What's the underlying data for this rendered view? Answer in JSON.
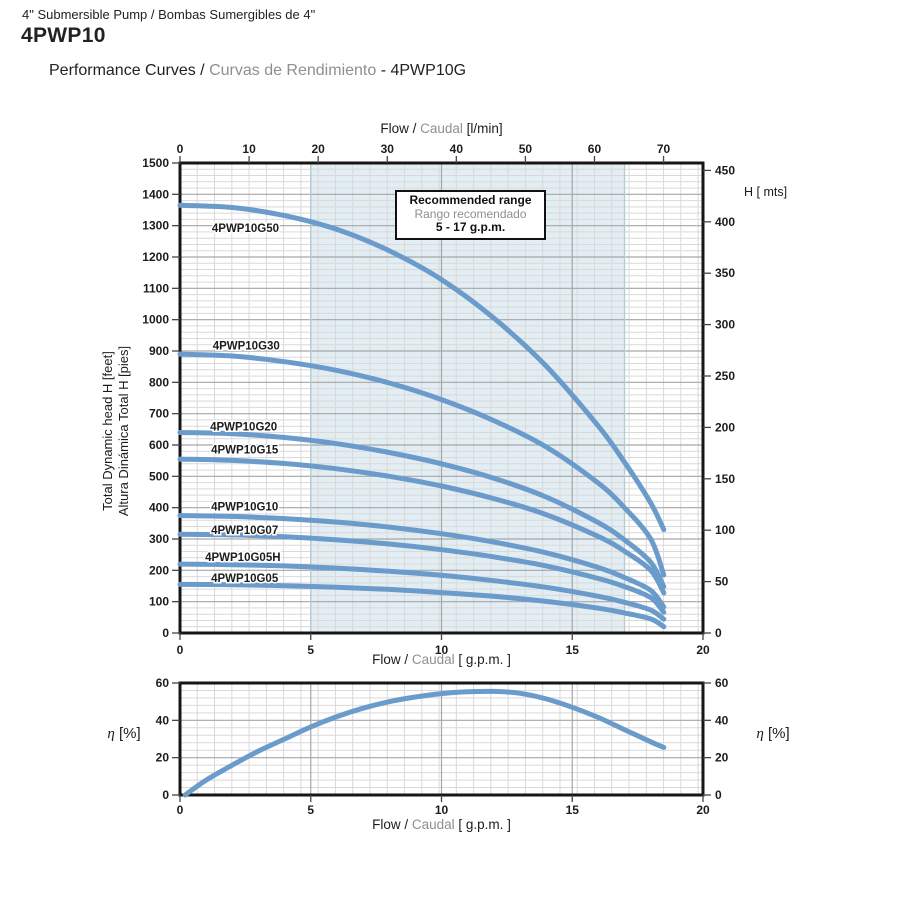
{
  "header": {
    "product_line": "4\" Submersible Pump / Bombas Sumergibles de 4\"",
    "model": "4PWP10",
    "subtitle_part1": "Performance Curves / ",
    "subtitle_part2": "Curvas de Rendimiento",
    "subtitle_part3": " - 4PWP10G"
  },
  "labels": {
    "top_axis_part1": "Flow / ",
    "top_axis_part2": "Caudal ",
    "top_axis_part3": "[l/min]",
    "bottom_axis_part1": "Flow / ",
    "bottom_axis_part2": "Caudal ",
    "bottom_axis_part3": "[ g.p.m. ]",
    "right_axis": "H [ mts]",
    "y_axis_line1": "Total Dynamic head H [feet]",
    "y_axis_line2": "Altura Dinámica Total H [pies]",
    "eta": "η",
    "eta_unit": " [%]",
    "recommended_line1": "Recommended range",
    "recommended_line2": "Rango recomendado",
    "recommended_line3": "5 - 17 g.p.m."
  },
  "colors": {
    "curve": "#6a9bcb",
    "shade": "#e2eef3",
    "shade_edge": "#b7ccd4",
    "grid_minor": "#d9d9d9",
    "grid_major": "#a6a6a6",
    "border": "#161616",
    "tick_text": "#1c1c1c",
    "gray_text": "#8f8f8f"
  },
  "chart_data": [
    {
      "type": "line",
      "title": "Head vs Flow performance curves",
      "xlabel": "Flow / Caudal [ g.p.m. ]",
      "xlabel_top": "Flow / Caudal [l/min]",
      "ylabel_left": "Total Dynamic head H [feet] / Altura Dinámica Total H [pies]",
      "ylabel_right": "H [ mts]",
      "x_range_gpm": [
        0,
        20
      ],
      "x_ticks_gpm": [
        0,
        5,
        10,
        15,
        20
      ],
      "x_ticks_lmin": [
        0,
        10,
        20,
        30,
        40,
        50,
        60,
        70
      ],
      "lmin_per_gpm": 3.7854,
      "y_range_feet": [
        0,
        1500
      ],
      "y_ticks_feet": [
        0,
        100,
        200,
        300,
        400,
        500,
        600,
        700,
        800,
        900,
        1000,
        1100,
        1200,
        1300,
        1400,
        1500
      ],
      "y_ticks_mts": [
        0,
        50,
        100,
        150,
        200,
        250,
        300,
        350,
        400,
        450
      ],
      "feet_per_meter": 3.28084,
      "grid": {
        "minor_x_lmin": 2.5,
        "major_x_gpm": 5,
        "minor_y_feet": 20,
        "major_y_feet": 100
      },
      "recommended_range_gpm": [
        5,
        17
      ],
      "x_gpm": [
        0,
        2,
        4,
        6,
        8,
        10,
        12,
        14,
        16,
        17,
        18,
        18.5
      ],
      "series": [
        {
          "name": "4PWP10G50",
          "y_feet": [
            1365,
            1358,
            1332,
            1288,
            1220,
            1128,
            1005,
            852,
            660,
            545,
            415,
            330
          ],
          "label_x_gpm": 1.22,
          "label_y_feet": 1292
        },
        {
          "name": "4PWP10G30",
          "y_feet": [
            890,
            884,
            866,
            838,
            798,
            745,
            678,
            594,
            478,
            400,
            300,
            185
          ],
          "label_x_gpm": 1.25,
          "label_y_feet": 918
        },
        {
          "name": "4PWP10G20",
          "y_feet": [
            640,
            636,
            624,
            604,
            576,
            540,
            494,
            434,
            352,
            297,
            226,
            148
          ],
          "label_x_gpm": 1.15,
          "label_y_feet": 659
        },
        {
          "name": "4PWP10G15",
          "y_feet": [
            555,
            551,
            541,
            524,
            500,
            469,
            429,
            378,
            308,
            261,
            200,
            128
          ],
          "label_x_gpm": 1.19,
          "label_y_feet": 585
        },
        {
          "name": "4PWP10G10",
          "y_feet": [
            375,
            372,
            365,
            354,
            338,
            317,
            290,
            256,
            209,
            177,
            136,
            83
          ],
          "label_x_gpm": 1.19,
          "label_y_feet": 403
        },
        {
          "name": "4PWP10G07",
          "y_feet": [
            315,
            313,
            307,
            297,
            284,
            266,
            243,
            214,
            174,
            148,
            113,
            66
          ],
          "label_x_gpm": 1.19,
          "label_y_feet": 329
        },
        {
          "name": "4PWP10G05H",
          "y_feet": [
            220,
            218,
            214,
            207,
            197,
            184,
            167,
            146,
            117,
            98,
            73,
            44
          ],
          "label_x_gpm": 0.96,
          "label_y_feet": 243
        },
        {
          "name": "4PWP10G05",
          "y_feet": [
            155,
            154,
            151,
            146,
            139,
            129,
            117,
            101,
            79,
            64,
            45,
            20
          ],
          "label_x_gpm": 1.19,
          "label_y_feet": 176
        }
      ]
    },
    {
      "type": "line",
      "title": "Efficiency vs Flow",
      "xlabel": "Flow / Caudal [ g.p.m. ]",
      "ylabel": "η [%]",
      "x_range_gpm": [
        0,
        20
      ],
      "x_ticks_gpm": [
        0,
        5,
        10,
        15,
        20
      ],
      "y_range_pct": [
        0,
        60
      ],
      "y_ticks_pct": [
        0,
        20,
        40,
        60
      ],
      "grid": {
        "minor_x_lmin": 2.5,
        "major_x_gpm": 5,
        "minor_y_pct": 4,
        "major_y_pct": 20
      },
      "series": [
        {
          "name": "efficiency",
          "x_gpm": [
            0.2,
            1,
            2,
            3,
            4,
            5,
            6,
            7,
            8,
            9,
            10,
            11,
            12,
            13,
            14,
            15,
            16,
            17,
            18,
            18.5
          ],
          "y_pct": [
            0,
            8,
            16,
            23.5,
            30,
            36.5,
            42,
            46.5,
            50,
            52.5,
            54.3,
            55.3,
            55.5,
            54.5,
            51.5,
            47,
            41.5,
            35,
            28.5,
            25.5
          ]
        }
      ]
    }
  ]
}
